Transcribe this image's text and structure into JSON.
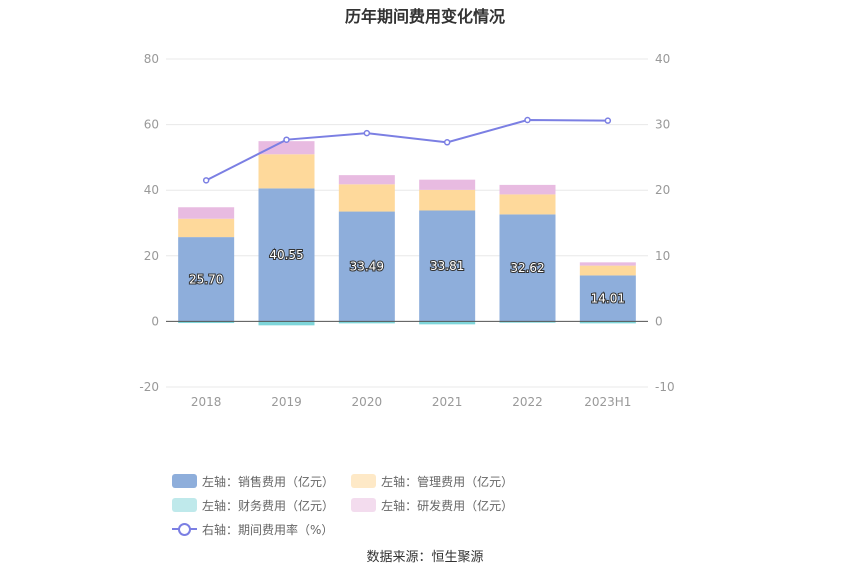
{
  "chart_data": {
    "type": "bar",
    "title": "历年期间费用变化情况",
    "categories": [
      "2018",
      "2019",
      "2020",
      "2021",
      "2022",
      "2023H1"
    ],
    "left_axis": {
      "ylim": [
        -20,
        80
      ],
      "ticks": [
        "-20",
        "0",
        "20",
        "40",
        "60",
        "80"
      ]
    },
    "right_axis": {
      "ylim": [
        -10,
        40
      ],
      "ticks": [
        "-10",
        "0",
        "10",
        "20",
        "30",
        "40"
      ]
    },
    "series": [
      {
        "name": "左轴：销售费用（亿元）",
        "type": "bar",
        "axis": "left",
        "color": "#8eaedb",
        "values": [
          25.7,
          40.55,
          33.49,
          33.81,
          32.62,
          14.01
        ],
        "labels": [
          "25.70",
          "40.55",
          "33.49",
          "33.81",
          "32.62",
          "14.01"
        ]
      },
      {
        "name": "左轴：管理费用（亿元）",
        "type": "bar",
        "axis": "left",
        "color": "#fed99b",
        "values": [
          5.6,
          10.4,
          8.3,
          6.3,
          6.1,
          3.0
        ]
      },
      {
        "name": "左轴：财务费用（亿元）",
        "type": "bar",
        "axis": "left",
        "color": "#7dd5d9",
        "values": [
          -0.5,
          -1.2,
          -0.6,
          -0.9,
          -0.4,
          -0.6
        ]
      },
      {
        "name": "左轴：研发费用（亿元）",
        "type": "bar",
        "axis": "left",
        "color": "#e8bbe1",
        "values": [
          3.5,
          4.0,
          2.8,
          3.1,
          2.9,
          1.0
        ]
      },
      {
        "name": "右轴：期间费用率（%）",
        "type": "line",
        "axis": "right",
        "color": "#7b7fe3",
        "values": [
          21.5,
          27.7,
          28.7,
          27.3,
          30.7,
          30.6
        ]
      }
    ],
    "source": "数据来源：恒生聚源"
  }
}
